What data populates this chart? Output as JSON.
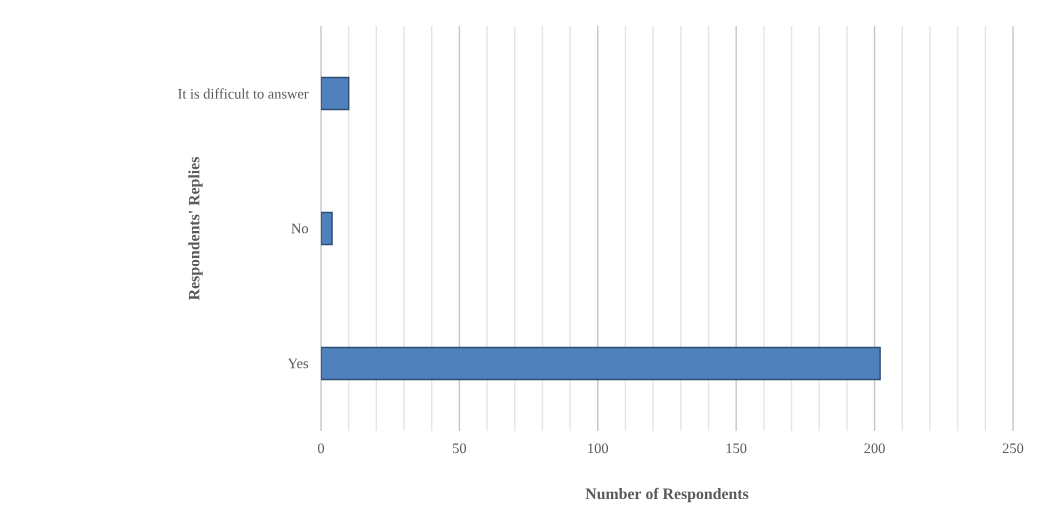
{
  "chart_data": {
    "type": "bar",
    "orientation": "horizontal",
    "xlabel": "Number of Respondents",
    "ylabel": "Respondents' Replies",
    "categories": [
      "It is difficult to answer",
      "No",
      "Yes"
    ],
    "values": [
      10,
      4,
      202
    ],
    "color": "#4f81bd",
    "xlim": [
      0,
      250
    ],
    "xticks": [
      0,
      50,
      100,
      150,
      200,
      250
    ],
    "grid": "x"
  }
}
